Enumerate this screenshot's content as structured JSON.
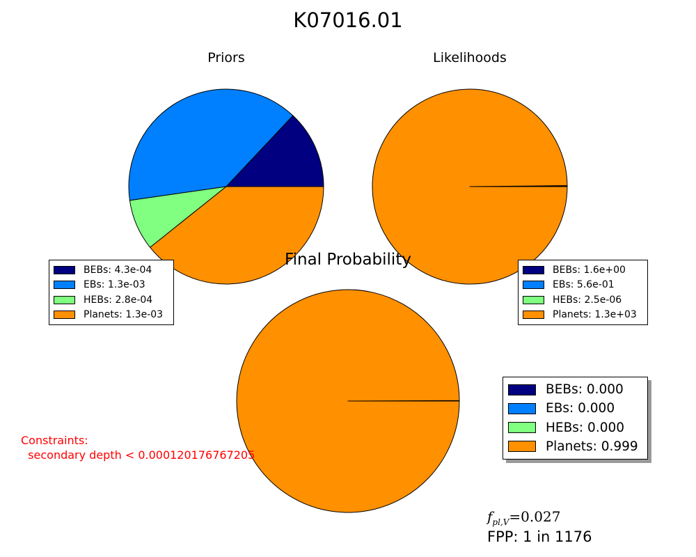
{
  "title": "K07016.01",
  "chart_data": [
    {
      "type": "pie",
      "title": "Priors",
      "labels": [
        "BEBs",
        "EBs",
        "HEBs",
        "Planets"
      ],
      "values": [
        0.00043,
        0.0013,
        0.00028,
        0.0013
      ],
      "colors": [
        "#000080",
        "#0080ff",
        "#80ff80",
        "#ff9000"
      ],
      "legend": [
        "BEBs: 4.3e-04",
        "EBs: 1.3e-03",
        "HEBs: 2.8e-04",
        "Planets: 1.3e-03"
      ],
      "legend_position": "lower-left"
    },
    {
      "type": "pie",
      "title": "Likelihoods",
      "labels": [
        "BEBs",
        "EBs",
        "HEBs",
        "Planets"
      ],
      "values": [
        1.6,
        0.56,
        2.5e-06,
        1300
      ],
      "colors": [
        "#000080",
        "#0080ff",
        "#80ff80",
        "#ff9000"
      ],
      "legend": [
        "BEBs: 1.6e+00",
        "EBs: 5.6e-01",
        "HEBs: 2.5e-06",
        "Planets: 1.3e+03"
      ],
      "legend_position": "lower-right"
    },
    {
      "type": "pie",
      "title": "Final Probability",
      "labels": [
        "BEBs",
        "EBs",
        "HEBs",
        "Planets"
      ],
      "values": [
        0.0004,
        0.0004,
        1e-07,
        0.9992
      ],
      "colors": [
        "#000080",
        "#0080ff",
        "#80ff80",
        "#ff9000"
      ],
      "legend": [
        "BEBs: 0.000",
        "EBs: 0.000",
        "HEBs: 0.000",
        "Planets: 0.999"
      ],
      "legend_position": "right"
    }
  ],
  "constraints": "Constraints:\n  secondary depth < 0.000120176767205",
  "fpl": {
    "symbol": "f",
    "subscript": "pl,V",
    "value": "=0.027"
  },
  "fpp": "FPP: 1 in 1176"
}
